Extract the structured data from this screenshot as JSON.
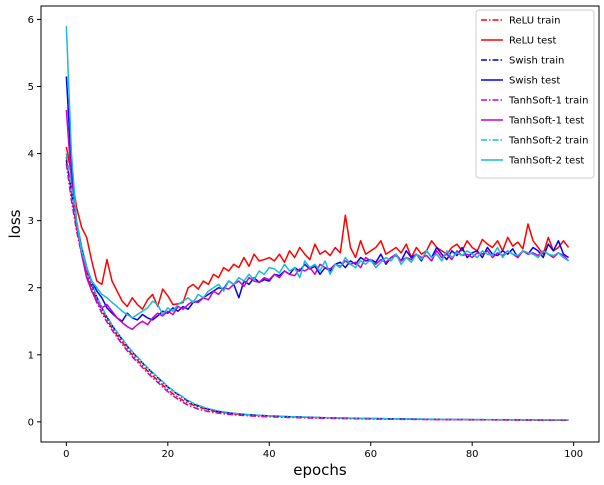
{
  "chart_data": {
    "type": "line",
    "xlabel": "epochs",
    "ylabel": "loss",
    "xlim": [
      -5,
      105
    ],
    "ylim": [
      -0.3,
      6.2
    ],
    "xticks": [
      0,
      20,
      40,
      60,
      80,
      100
    ],
    "yticks": [
      0,
      1,
      2,
      3,
      4,
      5,
      6
    ],
    "legend_position": "top-right",
    "grid": false,
    "x_start": 0,
    "series": [
      {
        "name": "ReLU train",
        "color": "#ff0000",
        "dash": "dashdot",
        "values": [
          3.95,
          3.4,
          2.9,
          2.55,
          2.25,
          2.0,
          1.82,
          1.66,
          1.52,
          1.4,
          1.29,
          1.19,
          1.09,
          1.0,
          0.92,
          0.84,
          0.76,
          0.69,
          0.62,
          0.55,
          0.48,
          0.42,
          0.37,
          0.32,
          0.28,
          0.25,
          0.22,
          0.2,
          0.18,
          0.16,
          0.15,
          0.14,
          0.13,
          0.12,
          0.115,
          0.11,
          0.105,
          0.1,
          0.096,
          0.092,
          0.088,
          0.085,
          0.082,
          0.079,
          0.076,
          0.073,
          0.071,
          0.069,
          0.067,
          0.065,
          0.063,
          0.061,
          0.059,
          0.057,
          0.056,
          0.055,
          0.053,
          0.052,
          0.051,
          0.05,
          0.049,
          0.048,
          0.047,
          0.046,
          0.045,
          0.044,
          0.043,
          0.042,
          0.041,
          0.04,
          0.039,
          0.038,
          0.038,
          0.037,
          0.036,
          0.035,
          0.035,
          0.034,
          0.034,
          0.033,
          0.033,
          0.032,
          0.032,
          0.031,
          0.031,
          0.03,
          0.03,
          0.03,
          0.029,
          0.029,
          0.028,
          0.028,
          0.028,
          0.027,
          0.027,
          0.027,
          0.026,
          0.026,
          0.026,
          0.025
        ]
      },
      {
        "name": "ReLU test",
        "color": "#ff0000",
        "dash": "solid",
        "values": [
          4.1,
          3.7,
          3.2,
          2.9,
          2.75,
          2.4,
          2.1,
          2.05,
          2.42,
          2.1,
          1.95,
          1.8,
          1.72,
          1.85,
          1.75,
          1.68,
          1.82,
          1.9,
          1.72,
          1.98,
          1.88,
          1.75,
          1.76,
          1.78,
          2.0,
          2.05,
          1.98,
          2.1,
          2.05,
          2.2,
          2.15,
          2.3,
          2.25,
          2.35,
          2.3,
          2.45,
          2.32,
          2.5,
          2.4,
          2.42,
          2.45,
          2.4,
          2.5,
          2.38,
          2.55,
          2.45,
          2.6,
          2.5,
          2.42,
          2.65,
          2.5,
          2.55,
          2.48,
          2.6,
          2.52,
          3.08,
          2.6,
          2.45,
          2.7,
          2.5,
          2.55,
          2.6,
          2.7,
          2.5,
          2.55,
          2.6,
          2.52,
          2.65,
          2.45,
          2.6,
          2.5,
          2.55,
          2.7,
          2.6,
          2.55,
          2.5,
          2.6,
          2.65,
          2.55,
          2.7,
          2.6,
          2.55,
          2.72,
          2.65,
          2.6,
          2.7,
          2.55,
          2.75,
          2.62,
          2.68,
          2.58,
          2.95,
          2.7,
          2.6,
          2.5,
          2.75,
          2.55,
          2.6,
          2.7,
          2.6
        ]
      },
      {
        "name": "Swish train",
        "color": "#0000cc",
        "dash": "dashdot",
        "values": [
          3.9,
          3.45,
          2.95,
          2.6,
          2.3,
          2.05,
          1.86,
          1.7,
          1.56,
          1.44,
          1.33,
          1.23,
          1.13,
          1.04,
          0.96,
          0.88,
          0.8,
          0.73,
          0.66,
          0.59,
          0.52,
          0.46,
          0.41,
          0.36,
          0.31,
          0.27,
          0.24,
          0.21,
          0.19,
          0.17,
          0.155,
          0.145,
          0.135,
          0.125,
          0.118,
          0.112,
          0.106,
          0.101,
          0.097,
          0.093,
          0.089,
          0.086,
          0.083,
          0.08,
          0.077,
          0.074,
          0.072,
          0.07,
          0.068,
          0.066,
          0.064,
          0.062,
          0.06,
          0.058,
          0.057,
          0.056,
          0.054,
          0.053,
          0.052,
          0.051,
          0.05,
          0.049,
          0.048,
          0.047,
          0.046,
          0.045,
          0.044,
          0.043,
          0.042,
          0.041,
          0.04,
          0.039,
          0.039,
          0.038,
          0.037,
          0.036,
          0.036,
          0.035,
          0.035,
          0.034,
          0.034,
          0.033,
          0.033,
          0.032,
          0.032,
          0.031,
          0.031,
          0.031,
          0.03,
          0.03,
          0.029,
          0.029,
          0.029,
          0.028,
          0.028,
          0.028,
          0.027,
          0.027,
          0.027,
          0.026
        ]
      },
      {
        "name": "Swish test",
        "color": "#0000ff",
        "dash": "solid",
        "values": [
          5.15,
          3.8,
          3.0,
          2.6,
          2.3,
          2.1,
          1.95,
          1.85,
          1.7,
          1.62,
          1.55,
          1.5,
          1.62,
          1.55,
          1.52,
          1.6,
          1.55,
          1.52,
          1.58,
          1.65,
          1.62,
          1.7,
          1.65,
          1.72,
          1.68,
          1.78,
          1.8,
          1.85,
          1.9,
          1.95,
          2.0,
          1.98,
          2.1,
          2.05,
          1.85,
          2.1,
          2.05,
          2.15,
          2.08,
          2.12,
          2.1,
          2.2,
          2.18,
          2.25,
          2.2,
          2.3,
          2.25,
          2.35,
          2.28,
          2.32,
          2.2,
          2.3,
          2.25,
          2.35,
          2.38,
          2.3,
          2.4,
          2.35,
          2.45,
          2.4,
          2.42,
          2.38,
          2.5,
          2.35,
          2.45,
          2.48,
          2.4,
          2.55,
          2.45,
          2.5,
          2.4,
          2.55,
          2.45,
          2.6,
          2.5,
          2.42,
          2.55,
          2.48,
          2.6,
          2.45,
          2.52,
          2.55,
          2.45,
          2.6,
          2.5,
          2.48,
          2.55,
          2.5,
          2.58,
          2.45,
          2.55,
          2.5,
          2.6,
          2.55,
          2.45,
          2.65,
          2.55,
          2.7,
          2.5,
          2.45
        ]
      },
      {
        "name": "TanhSoft-1 train",
        "color": "#cc00cc",
        "dash": "dashdot",
        "values": [
          3.85,
          3.3,
          2.85,
          2.5,
          2.2,
          1.95,
          1.78,
          1.62,
          1.49,
          1.37,
          1.26,
          1.16,
          1.06,
          0.97,
          0.89,
          0.81,
          0.73,
          0.66,
          0.59,
          0.52,
          0.45,
          0.39,
          0.34,
          0.29,
          0.25,
          0.22,
          0.19,
          0.17,
          0.155,
          0.14,
          0.13,
          0.12,
          0.112,
          0.105,
          0.1,
          0.095,
          0.09,
          0.086,
          0.082,
          0.079,
          0.076,
          0.073,
          0.07,
          0.068,
          0.066,
          0.064,
          0.062,
          0.06,
          0.058,
          0.056,
          0.054,
          0.053,
          0.052,
          0.05,
          0.049,
          0.048,
          0.047,
          0.046,
          0.045,
          0.044,
          0.043,
          0.042,
          0.041,
          0.04,
          0.04,
          0.039,
          0.038,
          0.037,
          0.037,
          0.036,
          0.035,
          0.035,
          0.034,
          0.034,
          0.033,
          0.033,
          0.032,
          0.032,
          0.031,
          0.031,
          0.03,
          0.03,
          0.03,
          0.029,
          0.029,
          0.028,
          0.028,
          0.028,
          0.027,
          0.027,
          0.027,
          0.026,
          0.026,
          0.026,
          0.025,
          0.025,
          0.025,
          0.025,
          0.024,
          0.024
        ]
      },
      {
        "name": "TanhSoft-1 test",
        "color": "#cc00cc",
        "dash": "solid",
        "values": [
          4.65,
          3.6,
          2.95,
          2.5,
          2.15,
          1.95,
          1.8,
          1.7,
          1.75,
          1.65,
          1.55,
          1.48,
          1.42,
          1.38,
          1.45,
          1.5,
          1.45,
          1.55,
          1.62,
          1.58,
          1.65,
          1.6,
          1.72,
          1.68,
          1.75,
          1.8,
          1.78,
          1.85,
          1.82,
          1.95,
          1.9,
          2.0,
          1.98,
          2.05,
          2.1,
          2.02,
          2.15,
          2.1,
          2.08,
          2.15,
          2.12,
          2.2,
          2.15,
          2.25,
          2.2,
          2.18,
          2.28,
          2.25,
          2.3,
          2.2,
          2.35,
          2.3,
          2.28,
          2.35,
          2.32,
          2.4,
          2.35,
          2.38,
          2.3,
          2.45,
          2.4,
          2.35,
          2.42,
          2.38,
          2.45,
          2.5,
          2.4,
          2.45,
          2.42,
          2.5,
          2.45,
          2.48,
          2.4,
          2.55,
          2.45,
          2.5,
          2.42,
          2.55,
          2.48,
          2.5,
          2.45,
          2.52,
          2.5,
          2.55,
          2.45,
          2.52,
          2.48,
          2.55,
          2.5,
          2.45,
          2.55,
          2.5,
          2.52,
          2.48,
          2.55,
          2.5,
          2.45,
          2.52,
          2.48,
          2.4
        ]
      },
      {
        "name": "TanhSoft-2 train",
        "color": "#17becf",
        "dash": "dashdot",
        "values": [
          4.0,
          3.5,
          3.0,
          2.62,
          2.32,
          2.06,
          1.87,
          1.71,
          1.57,
          1.45,
          1.34,
          1.24,
          1.14,
          1.05,
          0.97,
          0.89,
          0.81,
          0.74,
          0.67,
          0.6,
          0.53,
          0.47,
          0.42,
          0.37,
          0.32,
          0.28,
          0.25,
          0.22,
          0.2,
          0.18,
          0.165,
          0.15,
          0.14,
          0.13,
          0.122,
          0.115,
          0.109,
          0.104,
          0.099,
          0.095,
          0.091,
          0.088,
          0.085,
          0.082,
          0.079,
          0.076,
          0.074,
          0.072,
          0.07,
          0.068,
          0.066,
          0.064,
          0.062,
          0.06,
          0.059,
          0.058,
          0.056,
          0.055,
          0.054,
          0.053,
          0.052,
          0.051,
          0.05,
          0.049,
          0.048,
          0.047,
          0.046,
          0.045,
          0.044,
          0.043,
          0.042,
          0.041,
          0.041,
          0.04,
          0.039,
          0.038,
          0.038,
          0.037,
          0.037,
          0.036,
          0.036,
          0.035,
          0.035,
          0.034,
          0.034,
          0.033,
          0.033,
          0.033,
          0.032,
          0.032,
          0.031,
          0.031,
          0.031,
          0.03,
          0.03,
          0.03,
          0.029,
          0.029,
          0.029,
          0.028
        ]
      },
      {
        "name": "TanhSoft-2 test",
        "color": "#17becf",
        "dash": "solid",
        "values": [
          5.9,
          4.0,
          3.0,
          2.55,
          2.3,
          2.1,
          2.0,
          1.9,
          1.85,
          1.78,
          1.72,
          1.65,
          1.6,
          1.55,
          1.6,
          1.65,
          1.7,
          1.8,
          1.75,
          1.6,
          1.7,
          1.65,
          1.75,
          1.8,
          1.85,
          1.78,
          1.9,
          1.85,
          1.95,
          2.0,
          2.05,
          1.95,
          2.1,
          2.05,
          2.15,
          2.1,
          2.2,
          2.12,
          2.25,
          2.2,
          2.3,
          2.28,
          2.22,
          2.35,
          2.25,
          2.3,
          2.15,
          2.4,
          2.3,
          2.35,
          2.25,
          2.4,
          2.2,
          2.35,
          2.3,
          2.45,
          2.35,
          2.3,
          2.4,
          2.35,
          2.42,
          2.3,
          2.38,
          2.45,
          2.4,
          2.5,
          2.35,
          2.45,
          2.38,
          2.5,
          2.42,
          2.55,
          2.45,
          2.5,
          2.4,
          2.55,
          2.45,
          2.52,
          2.48,
          2.55,
          2.5,
          2.45,
          2.55,
          2.5,
          2.48,
          2.6,
          2.45,
          2.55,
          2.5,
          2.48,
          2.55,
          2.52,
          2.5,
          2.45,
          2.55,
          2.5,
          2.48,
          2.52,
          2.45,
          2.4
        ]
      }
    ]
  }
}
